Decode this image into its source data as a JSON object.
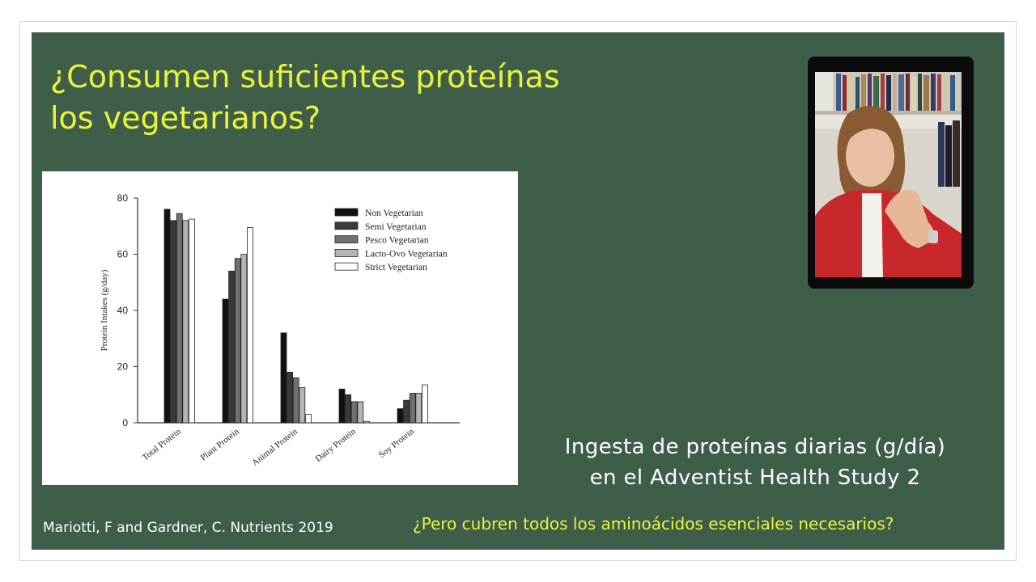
{
  "slide": {
    "title_line1": "¿Consumen suficientes proteínas",
    "title_line2": "los vegetarianos?",
    "caption_line1": "Ingesta de proteínas diarias (g/día)",
    "caption_line2": "en el  Adventist Health Study 2",
    "citation": "Mariotti, F and Gardner, C. Nutrients 2019",
    "question": "¿Pero cubren todos los aminoácidos esenciales necesarios?",
    "background_color": "#3f5e4a",
    "title_color": "#ecf23a"
  },
  "video": {
    "icon": "presenter-video-icon"
  },
  "chart_data": {
    "type": "bar",
    "title": "",
    "xlabel": "",
    "ylabel": "Protein Intakes (g/day)",
    "ylim": [
      0,
      80
    ],
    "yticks": [
      0,
      20,
      40,
      60,
      80
    ],
    "categories": [
      "Total Protein",
      "Plant Protein",
      "Animal Protein",
      "Dairy Protein",
      "Soy Protein"
    ],
    "legend_position": "top-right",
    "grid": false,
    "series": [
      {
        "name": "Non Vegetarian",
        "color": "#111111",
        "values": [
          76,
          44,
          32,
          12,
          5
        ]
      },
      {
        "name": "Semi Vegetarian",
        "color": "#3a3a3a",
        "values": [
          72,
          54,
          18,
          10,
          8
        ]
      },
      {
        "name": "Pesco Vegetarian",
        "color": "#707070",
        "values": [
          74.5,
          58.5,
          16,
          7.5,
          10.5
        ]
      },
      {
        "name": "Lacto-Ovo Vegetarian",
        "color": "#b4b4b4",
        "values": [
          72,
          60,
          12.5,
          7.5,
          10.5
        ]
      },
      {
        "name": "Strict Vegetarian",
        "color": "#ffffff",
        "values": [
          72.5,
          69.5,
          3,
          0.5,
          13.5
        ]
      }
    ]
  }
}
